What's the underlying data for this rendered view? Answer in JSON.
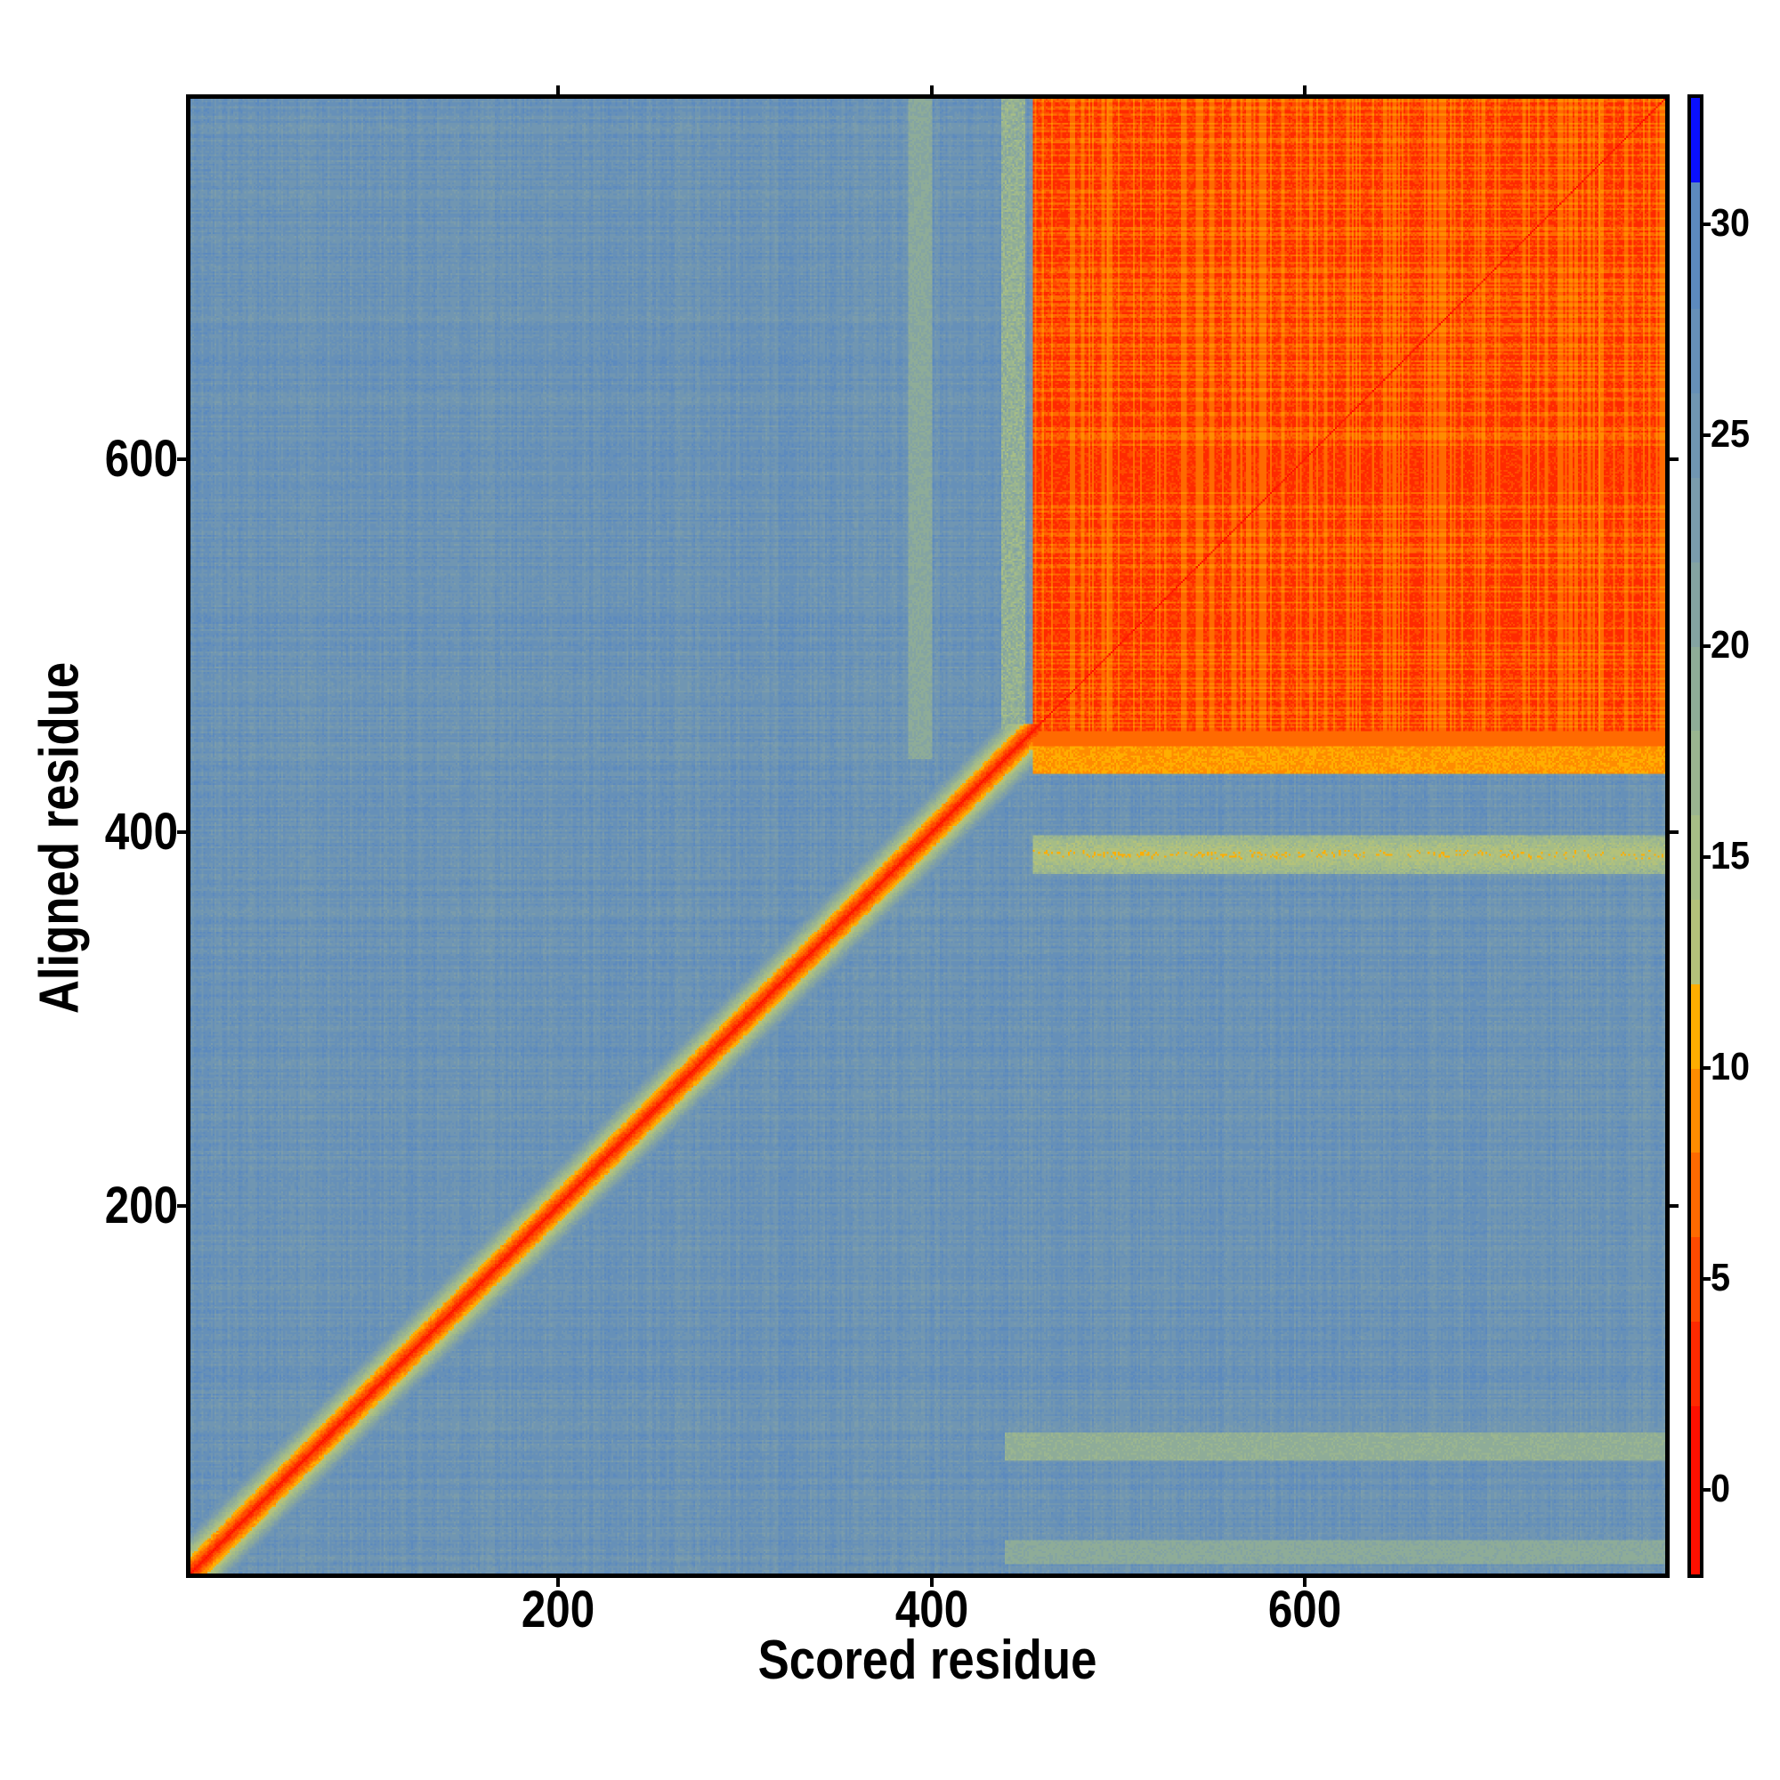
{
  "chart_data": {
    "type": "heatmap",
    "title": "",
    "xlabel": "Scored residue",
    "ylabel": "Aligned residue",
    "n_residues": 795,
    "xlim": [
      1,
      795
    ],
    "ylim": [
      1,
      795
    ],
    "x_ticks": [
      200,
      400,
      600
    ],
    "y_ticks": [
      200,
      400,
      600
    ],
    "x_tick_labels": [
      "200",
      "400",
      "600"
    ],
    "y_tick_labels": [
      "200",
      "400",
      "600"
    ],
    "colorbar": {
      "range": [
        -2,
        33
      ],
      "ticks": [
        0,
        5,
        10,
        15,
        20,
        25,
        30
      ],
      "tick_labels": [
        "0",
        "5",
        "10",
        "15",
        "20",
        "25",
        "30"
      ],
      "bands": [
        {
          "from": -2,
          "to": 2,
          "color": "#ff1000"
        },
        {
          "from": 2,
          "to": 4,
          "color": "#ff2a00"
        },
        {
          "from": 4,
          "to": 6,
          "color": "#ff4a00"
        },
        {
          "from": 6,
          "to": 8,
          "color": "#ff6a00"
        },
        {
          "from": 8,
          "to": 10,
          "color": "#ff8c00"
        },
        {
          "from": 10,
          "to": 12,
          "color": "#ffae00"
        },
        {
          "from": 12,
          "to": 14,
          "color": "#b4c27a"
        },
        {
          "from": 14,
          "to": 16,
          "color": "#a6bd86"
        },
        {
          "from": 16,
          "to": 18,
          "color": "#9ab590"
        },
        {
          "from": 18,
          "to": 20,
          "color": "#8eac98"
        },
        {
          "from": 20,
          "to": 22,
          "color": "#84a4a2"
        },
        {
          "from": 22,
          "to": 24,
          "color": "#7a9cac"
        },
        {
          "from": 24,
          "to": 26,
          "color": "#7096b2"
        },
        {
          "from": 26,
          "to": 28,
          "color": "#6690b8"
        },
        {
          "from": 28,
          "to": 31,
          "color": "#5c8abe"
        },
        {
          "from": 31,
          "to": 33,
          "color": "#0a10ff"
        }
      ]
    },
    "regions": [
      {
        "name": "background",
        "scored": [
          1,
          795
        ],
        "aligned": [
          1,
          795
        ],
        "value": 26
      },
      {
        "name": "diagonal",
        "scored": [
          1,
          455
        ],
        "aligned": [
          1,
          455
        ],
        "value_on_diagonal": 1
      },
      {
        "name": "domain-block",
        "scored": [
          455,
          795
        ],
        "aligned": [
          455,
          795
        ],
        "value": 3
      },
      {
        "name": "band-aligned-440",
        "scored": [
          455,
          795
        ],
        "aligned": [
          432,
          455
        ],
        "value": 9
      },
      {
        "name": "band-aligned-388",
        "scored": [
          455,
          795
        ],
        "aligned": [
          378,
          398
        ],
        "value": 11
      },
      {
        "name": "band-aligned-70",
        "scored": [
          440,
          795
        ],
        "aligned": [
          62,
          76
        ],
        "value": 17
      },
      {
        "name": "band-aligned-12",
        "scored": [
          440,
          795
        ],
        "aligned": [
          6,
          18
        ],
        "value": 18
      },
      {
        "name": "line-scored-395",
        "scored": [
          388,
          400
        ],
        "aligned": [
          440,
          795
        ],
        "value": 18
      },
      {
        "name": "line-scored-443",
        "scored": [
          438,
          450
        ],
        "aligned": [
          455,
          795
        ],
        "value": 15
      }
    ]
  }
}
